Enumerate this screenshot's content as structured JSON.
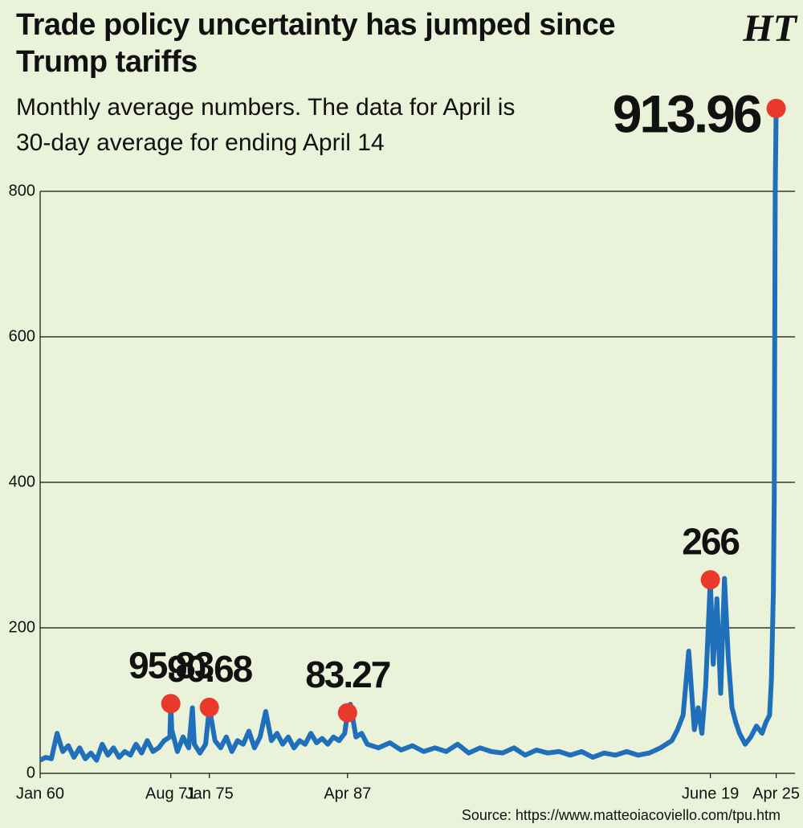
{
  "chart_data": {
    "type": "line",
    "title": "Trade policy uncertainty has jumped since Trump tariffs",
    "subtitle": "Monthly average numbers. The data for April is 30-day average for ending April 14",
    "logo": "HT",
    "source": "Source: https://www.matteoiacoviello.com/tpu.htm",
    "x": [
      0,
      6,
      12,
      18,
      24,
      30,
      36,
      42,
      48,
      54,
      60,
      66,
      72,
      78,
      84,
      90,
      96,
      102,
      108,
      114,
      120,
      126,
      132,
      138,
      139,
      140,
      146,
      152,
      158,
      162,
      164,
      170,
      176,
      180,
      186,
      192,
      198,
      204,
      210,
      216,
      222,
      228,
      234,
      240,
      246,
      252,
      258,
      264,
      270,
      276,
      282,
      288,
      294,
      300,
      306,
      312,
      318,
      324,
      327,
      330,
      336,
      342,
      348,
      360,
      372,
      384,
      396,
      408,
      420,
      432,
      444,
      456,
      468,
      480,
      492,
      504,
      516,
      528,
      540,
      552,
      564,
      576,
      588,
      600,
      612,
      624,
      636,
      648,
      660,
      672,
      678,
      684,
      690,
      696,
      700,
      704,
      708,
      713,
      716,
      720,
      724,
      728,
      732,
      736,
      740,
      744,
      750,
      756,
      762,
      768,
      772,
      776,
      778,
      780,
      781,
      782,
      783
    ],
    "series": [
      {
        "color": "#1f6fba",
        "values": [
          18,
          22,
          20,
          55,
          30,
          38,
          22,
          35,
          20,
          28,
          18,
          40,
          25,
          35,
          22,
          30,
          25,
          40,
          28,
          45,
          30,
          35,
          45,
          50,
          95.83,
          60,
          30,
          50,
          35,
          90,
          40,
          28,
          40,
          90.68,
          45,
          35,
          50,
          30,
          45,
          40,
          58,
          35,
          50,
          85,
          45,
          55,
          40,
          50,
          35,
          45,
          40,
          55,
          42,
          48,
          40,
          50,
          45,
          55,
          83.27,
          95,
          50,
          55,
          40,
          35,
          42,
          32,
          38,
          30,
          35,
          30,
          40,
          28,
          35,
          30,
          28,
          35,
          25,
          32,
          28,
          30,
          25,
          30,
          22,
          28,
          25,
          30,
          25,
          28,
          35,
          45,
          60,
          80,
          168,
          60,
          90,
          55,
          120,
          266,
          150,
          240,
          110,
          268,
          160,
          90,
          70,
          55,
          40,
          50,
          65,
          55,
          70,
          80,
          130,
          250,
          380,
          800,
          913.96
        ]
      }
    ],
    "highlights": {
      "x": [
        139,
        180,
        327,
        713,
        783
      ],
      "values": [
        95.83,
        90.68,
        83.27,
        266,
        913.96
      ],
      "color": "#e8392a"
    },
    "xlim": [
      0,
      803
    ],
    "xticks": [
      {
        "value": 0,
        "label": "Jan 60"
      },
      {
        "value": 139,
        "label": "Aug 71"
      },
      {
        "value": 180,
        "label": "Jan 75"
      },
      {
        "value": 327,
        "label": "Apr 87"
      },
      {
        "value": 713,
        "label": "June 19"
      },
      {
        "value": 783,
        "label": "Apr 25"
      }
    ],
    "ylim": [
      0,
      800
    ],
    "yticks": [
      0,
      200,
      400,
      600,
      800
    ],
    "grid": true
  }
}
